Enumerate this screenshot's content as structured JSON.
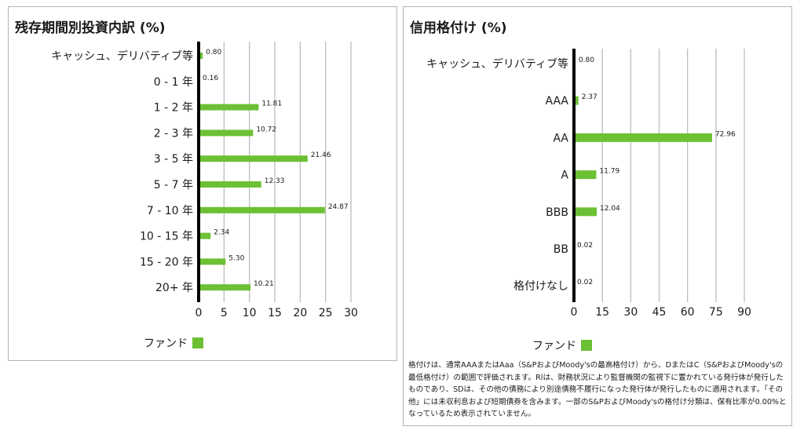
{
  "chart_data": [
    {
      "type": "bar",
      "orientation": "horizontal",
      "title": "残存期間別投資内訳 (%)",
      "categories": [
        "キャッシュ、デリバティブ等",
        "0 - 1 年",
        "1 - 2 年",
        "2 - 3 年",
        "3 - 5 年",
        "5 - 7 年",
        "7 - 10 年",
        "10 - 15 年",
        "15 - 20 年",
        "20+ 年"
      ],
      "series": [
        {
          "name": "ファンド",
          "values": [
            0.8,
            0.16,
            11.81,
            10.72,
            21.46,
            12.33,
            24.87,
            2.34,
            5.3,
            10.21
          ]
        }
      ],
      "data_labels": [
        "0.80",
        "0.16",
        "11.81",
        "10.72",
        "21.46",
        "12.33",
        "24.87",
        "2.34",
        "5.30",
        "10.21"
      ],
      "xlim": [
        0,
        30
      ],
      "ticks": [
        0,
        5,
        10,
        15,
        20,
        25,
        30
      ],
      "grid": true,
      "legend_position": "bottom-left",
      "color": "#6cc034"
    },
    {
      "type": "bar",
      "orientation": "horizontal",
      "title": "信用格付け (%)",
      "categories": [
        "キャッシュ、デリバティブ等",
        "AAA",
        "AA",
        "A",
        "BBB",
        "BB",
        "格付けなし"
      ],
      "series": [
        {
          "name": "ファンド",
          "values": [
            0.8,
            2.37,
            72.96,
            11.79,
            12.04,
            0.02,
            0.02
          ]
        }
      ],
      "data_labels": [
        "0.80",
        "2.37",
        "72.96",
        "11.79",
        "12.04",
        "0.02",
        "0.02"
      ],
      "xlim": [
        0,
        90
      ],
      "ticks": [
        0,
        15,
        30,
        45,
        60,
        75,
        90
      ],
      "grid": true,
      "legend_position": "bottom-left",
      "color": "#6cc034"
    }
  ],
  "legend_label": "ファンド",
  "footnote": "格付けは、通常AAAまたはAaa（S&PおよびMoody'sの最高格付け）から、DまたはC（S&PおよびMoody'sの最低格付け）の範囲で評価されます。Rlは、財務状況により監督機関の監視下に置かれている発行体が発行したものであり、SDは、その他の債務により別途債務不履行になった発行体が発行したものに適用されます。「その他」には未収利息および短期債券を含みます。一部のS&PおよびMoody'sの格付け分類は、保有比率が0.00%となっているため表示されていません。"
}
